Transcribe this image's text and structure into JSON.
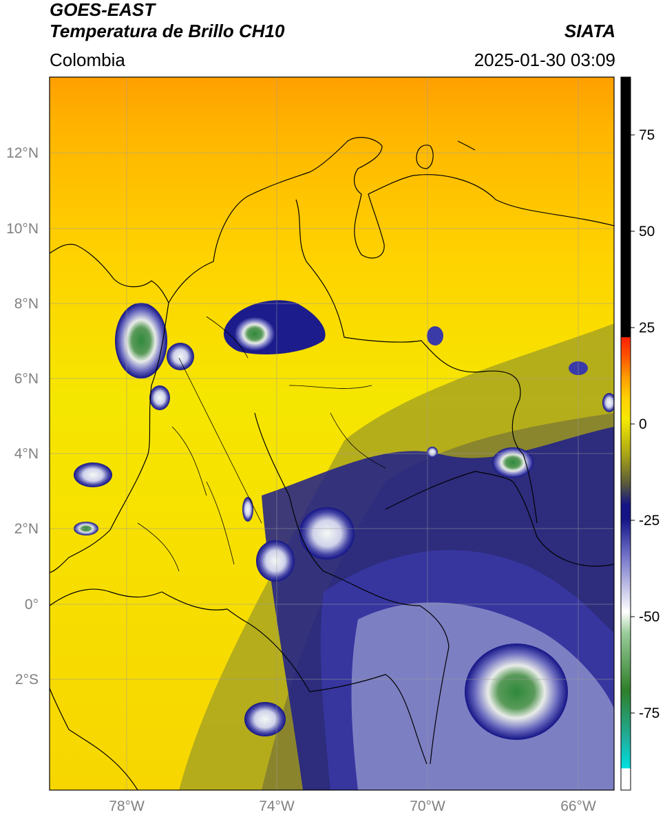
{
  "header": {
    "line1": "GOES-EAST",
    "line2": "Temperatura de Brillo CH10",
    "region": "Colombia",
    "org": "SIATA",
    "datetime": "2025-01-30 03:09"
  },
  "map": {
    "lon_labels": [
      "78°W",
      "74°W",
      "70°W",
      "66°W"
    ],
    "lat_labels": [
      "12°N",
      "10°N",
      "8°N",
      "6°N",
      "4°N",
      "2°N",
      "0°",
      "2°S"
    ],
    "lon_values": [
      -78,
      -74,
      -70,
      -66
    ],
    "lat_values": [
      12,
      10,
      8,
      6,
      4,
      2,
      0,
      -2
    ]
  },
  "colorbar": {
    "tick_labels": [
      "75",
      "50",
      "25",
      "0",
      "-25",
      "-50",
      "-75"
    ],
    "tick_values": [
      75,
      50,
      25,
      0,
      -25,
      -50,
      -75
    ],
    "range": [
      -95,
      90
    ],
    "colors": {
      "warm_black": "#000000",
      "red": "#ff2000",
      "orange": "#ff9a00",
      "yellow": "#f5e900",
      "olive": "#7f7c2a",
      "navy": "#141486",
      "white": "#ffffff",
      "green": "#2f7f2a",
      "teal": "#1fb0a0",
      "cyan": "#00e0e0"
    }
  }
}
